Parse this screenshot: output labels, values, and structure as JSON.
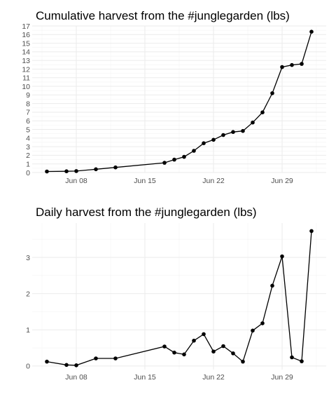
{
  "chart_data": [
    {
      "type": "line",
      "title": "Cumulative harvest from the #junglegarden (lbs)",
      "xlabel": "",
      "ylabel": "",
      "x_ticks": [
        "Jun 08",
        "Jun 15",
        "Jun 22",
        "Jun 29"
      ],
      "y_ticks": [
        "0",
        "1",
        "2",
        "3",
        "4",
        "5",
        "6",
        "7",
        "8",
        "9",
        "10",
        "11",
        "12",
        "13",
        "14",
        "15",
        "16",
        "17"
      ],
      "ylim": [
        0,
        17
      ],
      "grid": true,
      "series": [
        {
          "x": [
            "2017-06-05",
            "2017-06-07",
            "2017-06-08",
            "2017-06-10",
            "2017-06-12",
            "2017-06-17",
            "2017-06-18",
            "2017-06-19",
            "2017-06-20",
            "2017-06-21",
            "2017-06-22",
            "2017-06-23",
            "2017-06-24",
            "2017-06-25",
            "2017-06-26",
            "2017-06-27",
            "2017-06-28",
            "2017-06-29",
            "2017-06-30",
            "2017-07-01",
            "2017-07-02"
          ],
          "y": [
            0.12,
            0.15,
            0.17,
            0.38,
            0.59,
            1.13,
            1.5,
            1.82,
            2.52,
            3.4,
            3.8,
            4.35,
            4.7,
            4.82,
            5.8,
            6.98,
            9.2,
            12.23,
            12.47,
            12.6,
            16.33
          ]
        }
      ]
    },
    {
      "type": "line",
      "title": "Daily harvest from the #junglegarden (lbs)",
      "xlabel": "",
      "ylabel": "",
      "x_ticks": [
        "Jun 08",
        "Jun 15",
        "Jun 22",
        "Jun 29"
      ],
      "y_ticks": [
        "0",
        "1",
        "2",
        "3"
      ],
      "ylim": [
        -0.1,
        3.95
      ],
      "grid": true,
      "series": [
        {
          "x": [
            "2017-06-05",
            "2017-06-07",
            "2017-06-08",
            "2017-06-10",
            "2017-06-12",
            "2017-06-17",
            "2017-06-18",
            "2017-06-19",
            "2017-06-20",
            "2017-06-21",
            "2017-06-22",
            "2017-06-23",
            "2017-06-24",
            "2017-06-25",
            "2017-06-26",
            "2017-06-27",
            "2017-06-28",
            "2017-06-29",
            "2017-06-30",
            "2017-07-01",
            "2017-07-02"
          ],
          "y": [
            0.12,
            0.03,
            0.02,
            0.21,
            0.21,
            0.54,
            0.37,
            0.32,
            0.7,
            0.88,
            0.4,
            0.55,
            0.35,
            0.12,
            0.98,
            1.18,
            2.22,
            3.03,
            0.24,
            0.13,
            3.73
          ]
        }
      ]
    }
  ]
}
